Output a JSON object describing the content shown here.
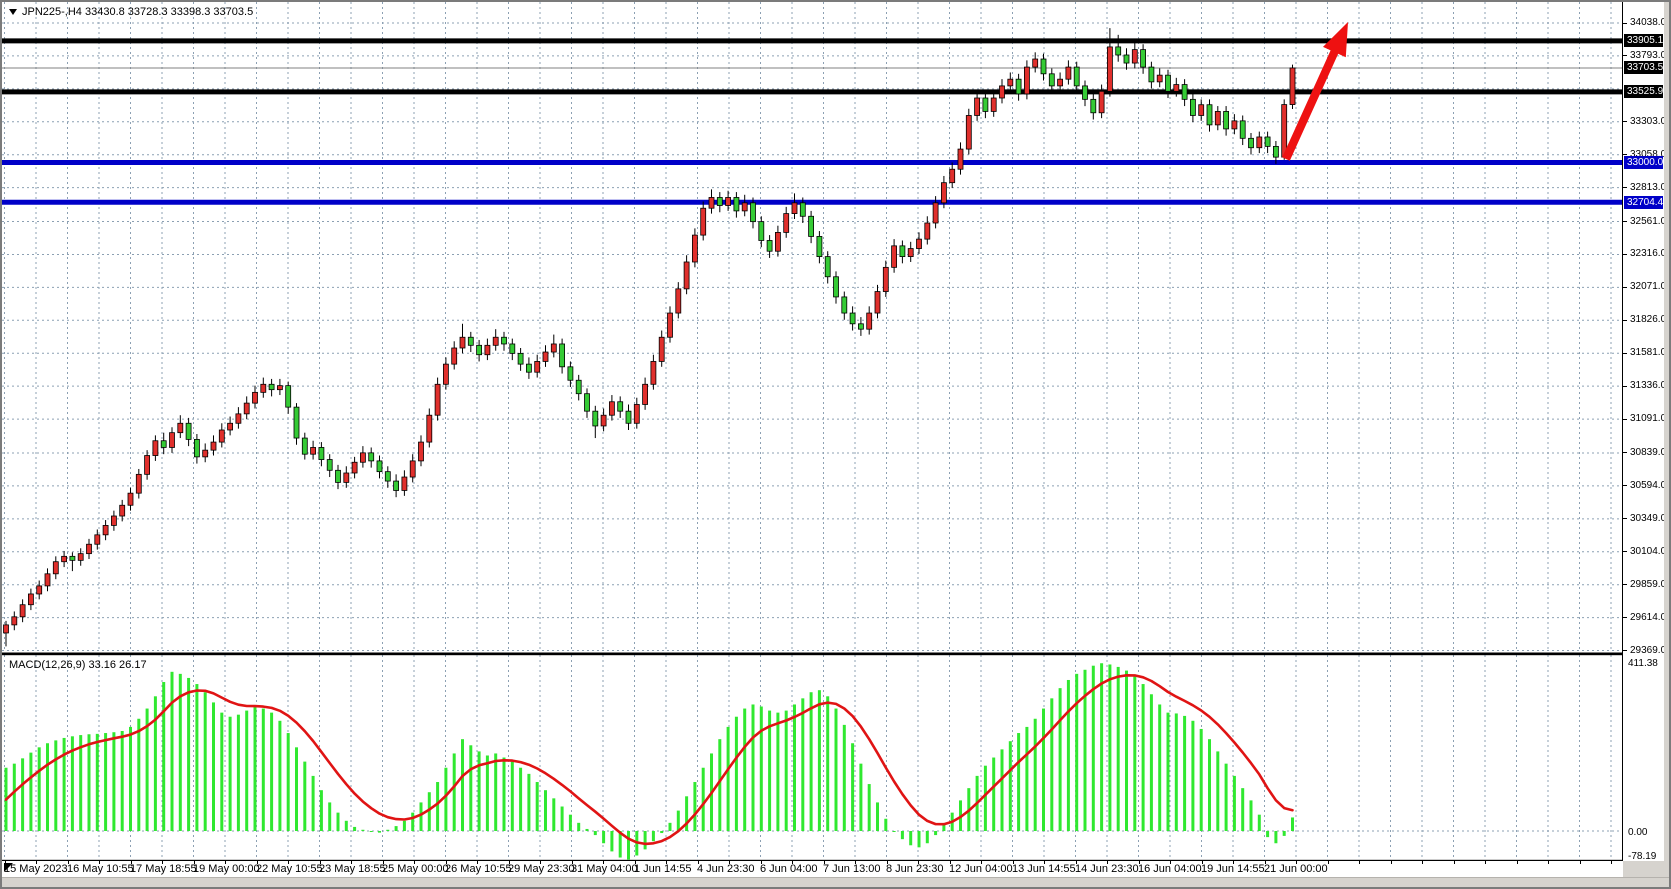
{
  "window": {
    "symbol_label": "JPN225-,H4",
    "ohlc_label": "33430.8 33728.3 33398.3 33703.5"
  },
  "colors": {
    "bull_candle": "#e02f2c",
    "bear_candle": "#35cb35",
    "candle_border": "#000000",
    "wick": "#000000",
    "grid": "#8ca0b3",
    "macd_bar": "#30e830",
    "signal_line": "#e01414",
    "level_black": "#000000",
    "level_blue": "#0000c8",
    "bid_line": "#808080",
    "arrow": "#ee1111",
    "background": "#ffffff"
  },
  "price_axis": {
    "grid_labels": [
      "34038.0",
      "33793.0",
      "33303.0",
      "33058.0",
      "32813.0",
      "32561.0",
      "32316.0",
      "32071.0",
      "31826.0",
      "31581.0",
      "31336.0",
      "31091.0",
      "30839.0",
      "30594.0",
      "30349.0",
      "30104.0",
      "29859.0",
      "29614.0",
      "29369.0"
    ],
    "level_labels": [
      {
        "text": "33905.1",
        "value": 33905.1,
        "bg": "#000000"
      },
      {
        "text": "33703.5",
        "value": 33703.5,
        "bg": "#000000",
        "role": "current-bid"
      },
      {
        "text": "33525.9",
        "value": 33525.9,
        "bg": "#000000"
      },
      {
        "text": "33000.0",
        "value": 33000.0,
        "bg": "#0000c8"
      },
      {
        "text": "32704.4",
        "value": 32704.4,
        "bg": "#0000c8"
      }
    ]
  },
  "time_axis": {
    "labels": [
      "15 May 2023",
      "16 May 10:55",
      "17 May 18:55",
      "19 May 00:00",
      "22 May 10:55",
      "23 May 18:55",
      "25 May 00:00",
      "26 May 10:55",
      "29 May 23:30",
      "31 May 04:00",
      "1 Jun 14:55",
      "4 Jun 23:30",
      "6 Jun 04:00",
      "7 Jun 13:00",
      "8 Jun 23:30",
      "12 Jun 04:00",
      "13 Jun 14:55",
      "14 Jun 23:30",
      "16 Jun 04:00",
      "19 Jun 14:55",
      "21 Jun 00:00"
    ]
  },
  "macd_panel": {
    "label": "MACD(12,26,9) 33.16 26.17",
    "scale_top": "411.38",
    "scale_zero": "0.00",
    "scale_bottom": "-78.19"
  },
  "chart_data": [
    {
      "type": "candlestick",
      "title": "JPN225-,H4",
      "timeframe": "H4",
      "current_bar": {
        "open": 33430.8,
        "high": 33728.3,
        "low": 33398.3,
        "close": 33703.5
      },
      "ylim": [
        29300,
        34100
      ],
      "grid_values": [
        34038,
        33793,
        33548,
        33303,
        33058,
        32813,
        32561,
        32316,
        32071,
        31826,
        31581,
        31336,
        31091,
        30839,
        30594,
        30349,
        30104,
        29859,
        29614,
        29369
      ],
      "horizontal_lines": [
        {
          "price": 33905.1,
          "color": "#000000",
          "width": 5
        },
        {
          "price": 33525.9,
          "color": "#000000",
          "width": 5
        },
        {
          "price": 33000.0,
          "color": "#0000c8",
          "width": 5
        },
        {
          "price": 32704.4,
          "color": "#0000c8",
          "width": 5
        },
        {
          "price": 33703.5,
          "color": "#808080",
          "width": 1,
          "role": "bid-line"
        }
      ],
      "note": "bullish candles are red, bearish candles are green in this color scheme; ohlc arrays are [open,high,low,close]",
      "candles": [
        [
          29500,
          29590,
          29400,
          29560
        ],
        [
          29560,
          29660,
          29520,
          29620
        ],
        [
          29620,
          29750,
          29580,
          29710
        ],
        [
          29710,
          29830,
          29670,
          29790
        ],
        [
          29790,
          29890,
          29750,
          29850
        ],
        [
          29850,
          29980,
          29810,
          29940
        ],
        [
          29940,
          30070,
          29900,
          30030
        ],
        [
          30030,
          30110,
          29990,
          30070
        ],
        [
          30070,
          30100,
          29960,
          30040
        ],
        [
          30040,
          30130,
          30000,
          30090
        ],
        [
          30090,
          30200,
          30050,
          30160
        ],
        [
          30160,
          30270,
          30120,
          30230
        ],
        [
          30230,
          30340,
          30190,
          30300
        ],
        [
          30300,
          30410,
          30260,
          30370
        ],
        [
          30370,
          30490,
          30330,
          30450
        ],
        [
          30450,
          30580,
          30410,
          30540
        ],
        [
          30540,
          30720,
          30500,
          30680
        ],
        [
          30680,
          30860,
          30640,
          30820
        ],
        [
          30820,
          30970,
          30780,
          30930
        ],
        [
          30930,
          30990,
          30830,
          30880
        ],
        [
          30880,
          31030,
          30840,
          30990
        ],
        [
          30990,
          31120,
          30950,
          31060
        ],
        [
          31060,
          31100,
          30890,
          30940
        ],
        [
          30940,
          30980,
          30760,
          30810
        ],
        [
          30810,
          30910,
          30770,
          30860
        ],
        [
          30860,
          30970,
          30820,
          30920
        ],
        [
          30920,
          31060,
          30880,
          31010
        ],
        [
          31010,
          31110,
          30970,
          31060
        ],
        [
          31060,
          31180,
          31020,
          31130
        ],
        [
          31130,
          31260,
          31090,
          31210
        ],
        [
          31210,
          31340,
          31170,
          31290
        ],
        [
          31290,
          31400,
          31250,
          31350
        ],
        [
          31350,
          31390,
          31260,
          31310
        ],
        [
          31310,
          31390,
          31270,
          31340
        ],
        [
          31340,
          31370,
          31130,
          31180
        ],
        [
          31180,
          31210,
          30900,
          30950
        ],
        [
          30950,
          30990,
          30790,
          30830
        ],
        [
          30830,
          30930,
          30790,
          30880
        ],
        [
          30880,
          30920,
          30740,
          30790
        ],
        [
          30790,
          30830,
          30660,
          30710
        ],
        [
          30710,
          30750,
          30570,
          30620
        ],
        [
          30620,
          30740,
          30580,
          30690
        ],
        [
          30690,
          30810,
          30650,
          30770
        ],
        [
          30770,
          30890,
          30730,
          30840
        ],
        [
          30840,
          30880,
          30730,
          30780
        ],
        [
          30780,
          30820,
          30650,
          30700
        ],
        [
          30700,
          30740,
          30580,
          30630
        ],
        [
          30630,
          30680,
          30510,
          30560
        ],
        [
          30560,
          30710,
          30520,
          30660
        ],
        [
          30660,
          30830,
          30620,
          30780
        ],
        [
          30780,
          30970,
          30740,
          30920
        ],
        [
          30920,
          31170,
          30880,
          31120
        ],
        [
          31120,
          31400,
          31080,
          31350
        ],
        [
          31350,
          31550,
          31310,
          31500
        ],
        [
          31500,
          31670,
          31460,
          31620
        ],
        [
          31620,
          31800,
          31580,
          31700
        ],
        [
          31700,
          31740,
          31590,
          31640
        ],
        [
          31640,
          31680,
          31520,
          31570
        ],
        [
          31570,
          31690,
          31530,
          31640
        ],
        [
          31640,
          31760,
          31600,
          31700
        ],
        [
          31700,
          31740,
          31600,
          31650
        ],
        [
          31650,
          31690,
          31530,
          31580
        ],
        [
          31580,
          31620,
          31450,
          31500
        ],
        [
          31500,
          31550,
          31390,
          31440
        ],
        [
          31440,
          31570,
          31400,
          31520
        ],
        [
          31520,
          31640,
          31480,
          31590
        ],
        [
          31590,
          31720,
          31550,
          31650
        ],
        [
          31650,
          31690,
          31430,
          31480
        ],
        [
          31480,
          31520,
          31330,
          31380
        ],
        [
          31380,
          31420,
          31230,
          31280
        ],
        [
          31280,
          31320,
          31100,
          31150
        ],
        [
          31150,
          31190,
          30950,
          31040
        ],
        [
          31040,
          31170,
          31000,
          31120
        ],
        [
          31120,
          31270,
          31080,
          31220
        ],
        [
          31220,
          31260,
          31100,
          31150
        ],
        [
          31150,
          31200,
          31010,
          31060
        ],
        [
          31060,
          31250,
          31020,
          31200
        ],
        [
          31200,
          31400,
          31160,
          31350
        ],
        [
          31350,
          31570,
          31310,
          31520
        ],
        [
          31520,
          31750,
          31480,
          31700
        ],
        [
          31700,
          31930,
          31660,
          31880
        ],
        [
          31880,
          32110,
          31840,
          32060
        ],
        [
          32060,
          32310,
          32020,
          32260
        ],
        [
          32260,
          32510,
          32220,
          32460
        ],
        [
          32460,
          32710,
          32420,
          32660
        ],
        [
          32660,
          32800,
          32620,
          32740
        ],
        [
          32740,
          32780,
          32630,
          32680
        ],
        [
          32680,
          32790,
          32640,
          32740
        ],
        [
          32740,
          32780,
          32590,
          32640
        ],
        [
          32640,
          32760,
          32600,
          32700
        ],
        [
          32700,
          32740,
          32510,
          32560
        ],
        [
          32560,
          32600,
          32370,
          32420
        ],
        [
          32420,
          32460,
          32290,
          32340
        ],
        [
          32340,
          32530,
          32300,
          32480
        ],
        [
          32480,
          32670,
          32440,
          32620
        ],
        [
          32620,
          32770,
          32580,
          32700
        ],
        [
          32700,
          32740,
          32550,
          32600
        ],
        [
          32600,
          32640,
          32400,
          32450
        ],
        [
          32450,
          32490,
          32250,
          32300
        ],
        [
          32300,
          32340,
          32100,
          32150
        ],
        [
          32150,
          32190,
          31950,
          32000
        ],
        [
          32000,
          32040,
          31830,
          31880
        ],
        [
          31880,
          31930,
          31750,
          31800
        ],
        [
          31800,
          31850,
          31710,
          31760
        ],
        [
          31760,
          31930,
          31720,
          31880
        ],
        [
          31880,
          32090,
          31840,
          32040
        ],
        [
          32040,
          32270,
          32000,
          32220
        ],
        [
          32220,
          32430,
          32180,
          32380
        ],
        [
          32380,
          32420,
          32250,
          32300
        ],
        [
          32300,
          32410,
          32260,
          32360
        ],
        [
          32360,
          32480,
          32320,
          32430
        ],
        [
          32430,
          32600,
          32390,
          32550
        ],
        [
          32550,
          32750,
          32510,
          32700
        ],
        [
          32700,
          32900,
          32660,
          32850
        ],
        [
          32850,
          33000,
          32810,
          32950
        ],
        [
          32950,
          33150,
          32910,
          33100
        ],
        [
          33100,
          33400,
          33060,
          33350
        ],
        [
          33350,
          33530,
          33310,
          33480
        ],
        [
          33480,
          33520,
          33330,
          33380
        ],
        [
          33380,
          33530,
          33340,
          33480
        ],
        [
          33480,
          33620,
          33440,
          33570
        ],
        [
          33570,
          33670,
          33530,
          33620
        ],
        [
          33620,
          33660,
          33460,
          33510
        ],
        [
          33510,
          33760,
          33470,
          33710
        ],
        [
          33710,
          33820,
          33670,
          33770
        ],
        [
          33770,
          33810,
          33610,
          33660
        ],
        [
          33660,
          33700,
          33520,
          33570
        ],
        [
          33570,
          33670,
          33530,
          33620
        ],
        [
          33620,
          33760,
          33580,
          33710
        ],
        [
          33710,
          33750,
          33520,
          33570
        ],
        [
          33570,
          33610,
          33420,
          33470
        ],
        [
          33470,
          33510,
          33320,
          33370
        ],
        [
          33370,
          33580,
          33330,
          33530
        ],
        [
          33530,
          34000,
          33490,
          33860
        ],
        [
          33860,
          33950,
          33750,
          33800
        ],
        [
          33800,
          33850,
          33690,
          33740
        ],
        [
          33740,
          33900,
          33700,
          33840
        ],
        [
          33840,
          33880,
          33660,
          33710
        ],
        [
          33710,
          33750,
          33550,
          33600
        ],
        [
          33600,
          33700,
          33560,
          33650
        ],
        [
          33650,
          33690,
          33480,
          33530
        ],
        [
          33530,
          33630,
          33490,
          33580
        ],
        [
          33580,
          33620,
          33420,
          33470
        ],
        [
          33470,
          33510,
          33300,
          33350
        ],
        [
          33350,
          33470,
          33310,
          33430
        ],
        [
          33430,
          33470,
          33230,
          33280
        ],
        [
          33280,
          33420,
          33240,
          33380
        ],
        [
          33380,
          33420,
          33200,
          33250
        ],
        [
          33250,
          33360,
          33210,
          33310
        ],
        [
          33310,
          33350,
          33130,
          33180
        ],
        [
          33180,
          33220,
          33060,
          33110
        ],
        [
          33110,
          33230,
          33070,
          33190
        ],
        [
          33190,
          33230,
          33070,
          33120
        ],
        [
          33120,
          33160,
          32990,
          33040
        ],
        [
          33040,
          33470,
          33020,
          33431
        ],
        [
          33431,
          33728.3,
          33398.3,
          33703.5
        ]
      ]
    },
    {
      "type": "macd",
      "params": "12,26,9",
      "current_macd": 33.16,
      "current_signal": 26.17,
      "ylim": [
        -78.19,
        411.38
      ],
      "grid_values": [
        0
      ],
      "histogram": [
        155,
        165,
        178,
        192,
        205,
        215,
        222,
        228,
        232,
        235,
        237,
        238,
        240,
        242,
        245,
        255,
        275,
        300,
        330,
        365,
        390,
        385,
        375,
        360,
        340,
        315,
        290,
        280,
        285,
        295,
        305,
        300,
        290,
        270,
        240,
        205,
        170,
        135,
        100,
        70,
        45,
        25,
        10,
        3,
        -2,
        -4,
        3,
        12,
        25,
        45,
        70,
        95,
        120,
        155,
        190,
        225,
        210,
        195,
        185,
        190,
        180,
        170,
        155,
        140,
        120,
        100,
        80,
        60,
        40,
        20,
        5,
        -10,
        -30,
        -50,
        -65,
        -70,
        -60,
        -45,
        -25,
        -5,
        20,
        50,
        85,
        120,
        155,
        190,
        225,
        255,
        280,
        300,
        310,
        305,
        295,
        290,
        295,
        310,
        325,
        340,
        345,
        330,
        300,
        260,
        215,
        165,
        115,
        70,
        30,
        0,
        -20,
        -35,
        -40,
        -30,
        -10,
        15,
        45,
        75,
        105,
        135,
        160,
        180,
        200,
        220,
        240,
        255,
        275,
        300,
        325,
        350,
        370,
        385,
        395,
        405,
        411,
        408,
        402,
        393,
        380,
        360,
        335,
        310,
        290,
        288,
        282,
        270,
        250,
        225,
        195,
        165,
        135,
        105,
        75,
        40,
        -15,
        -30,
        -12,
        33.16
      ],
      "signal_period": 9
    }
  ],
  "annotations": {
    "arrow": {
      "shape": "up-right-arrow",
      "color": "#ee1111",
      "from_price": 33020,
      "to_price": 33890,
      "description": "red arrow from 33000 support level pointing up-right"
    }
  }
}
